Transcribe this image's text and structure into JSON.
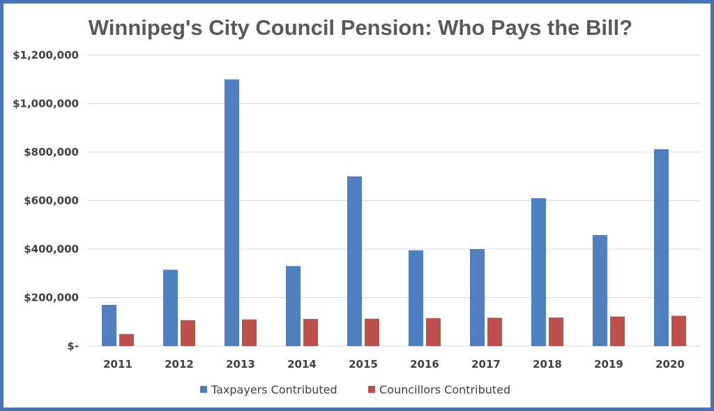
{
  "chart_data": {
    "type": "bar",
    "title": "Winnipeg's City Council Pension: Who Pays the Bill?",
    "xlabel": "",
    "ylabel": "",
    "categories": [
      "2011",
      "2012",
      "2013",
      "2014",
      "2015",
      "2016",
      "2017",
      "2018",
      "2019",
      "2020"
    ],
    "series": [
      {
        "name": "Taxpayers Contributed",
        "color": "#4f7fbe",
        "values": [
          170000,
          315000,
          1100000,
          330000,
          700000,
          395000,
          400000,
          610000,
          458000,
          812000
        ]
      },
      {
        "name": "Councillors Contributed",
        "color": "#c0504d",
        "values": [
          50000,
          107000,
          110000,
          112000,
          113000,
          115000,
          117000,
          118000,
          122000,
          125000
        ]
      }
    ],
    "ylim": [
      0,
      1200000
    ],
    "yticks": [
      {
        "value": 0,
        "label": "$-"
      },
      {
        "value": 200000,
        "label": "$200,000"
      },
      {
        "value": 400000,
        "label": "$400,000"
      },
      {
        "value": 600000,
        "label": "$600,000"
      },
      {
        "value": 800000,
        "label": "$800,000"
      },
      {
        "value": 1000000,
        "label": "$1,000,000"
      },
      {
        "value": 1200000,
        "label": "$1,200,000"
      }
    ],
    "grid": true,
    "legend_position": "bottom",
    "gridline_color": "#d9d9d9",
    "frame_color": "#4a72b8"
  }
}
